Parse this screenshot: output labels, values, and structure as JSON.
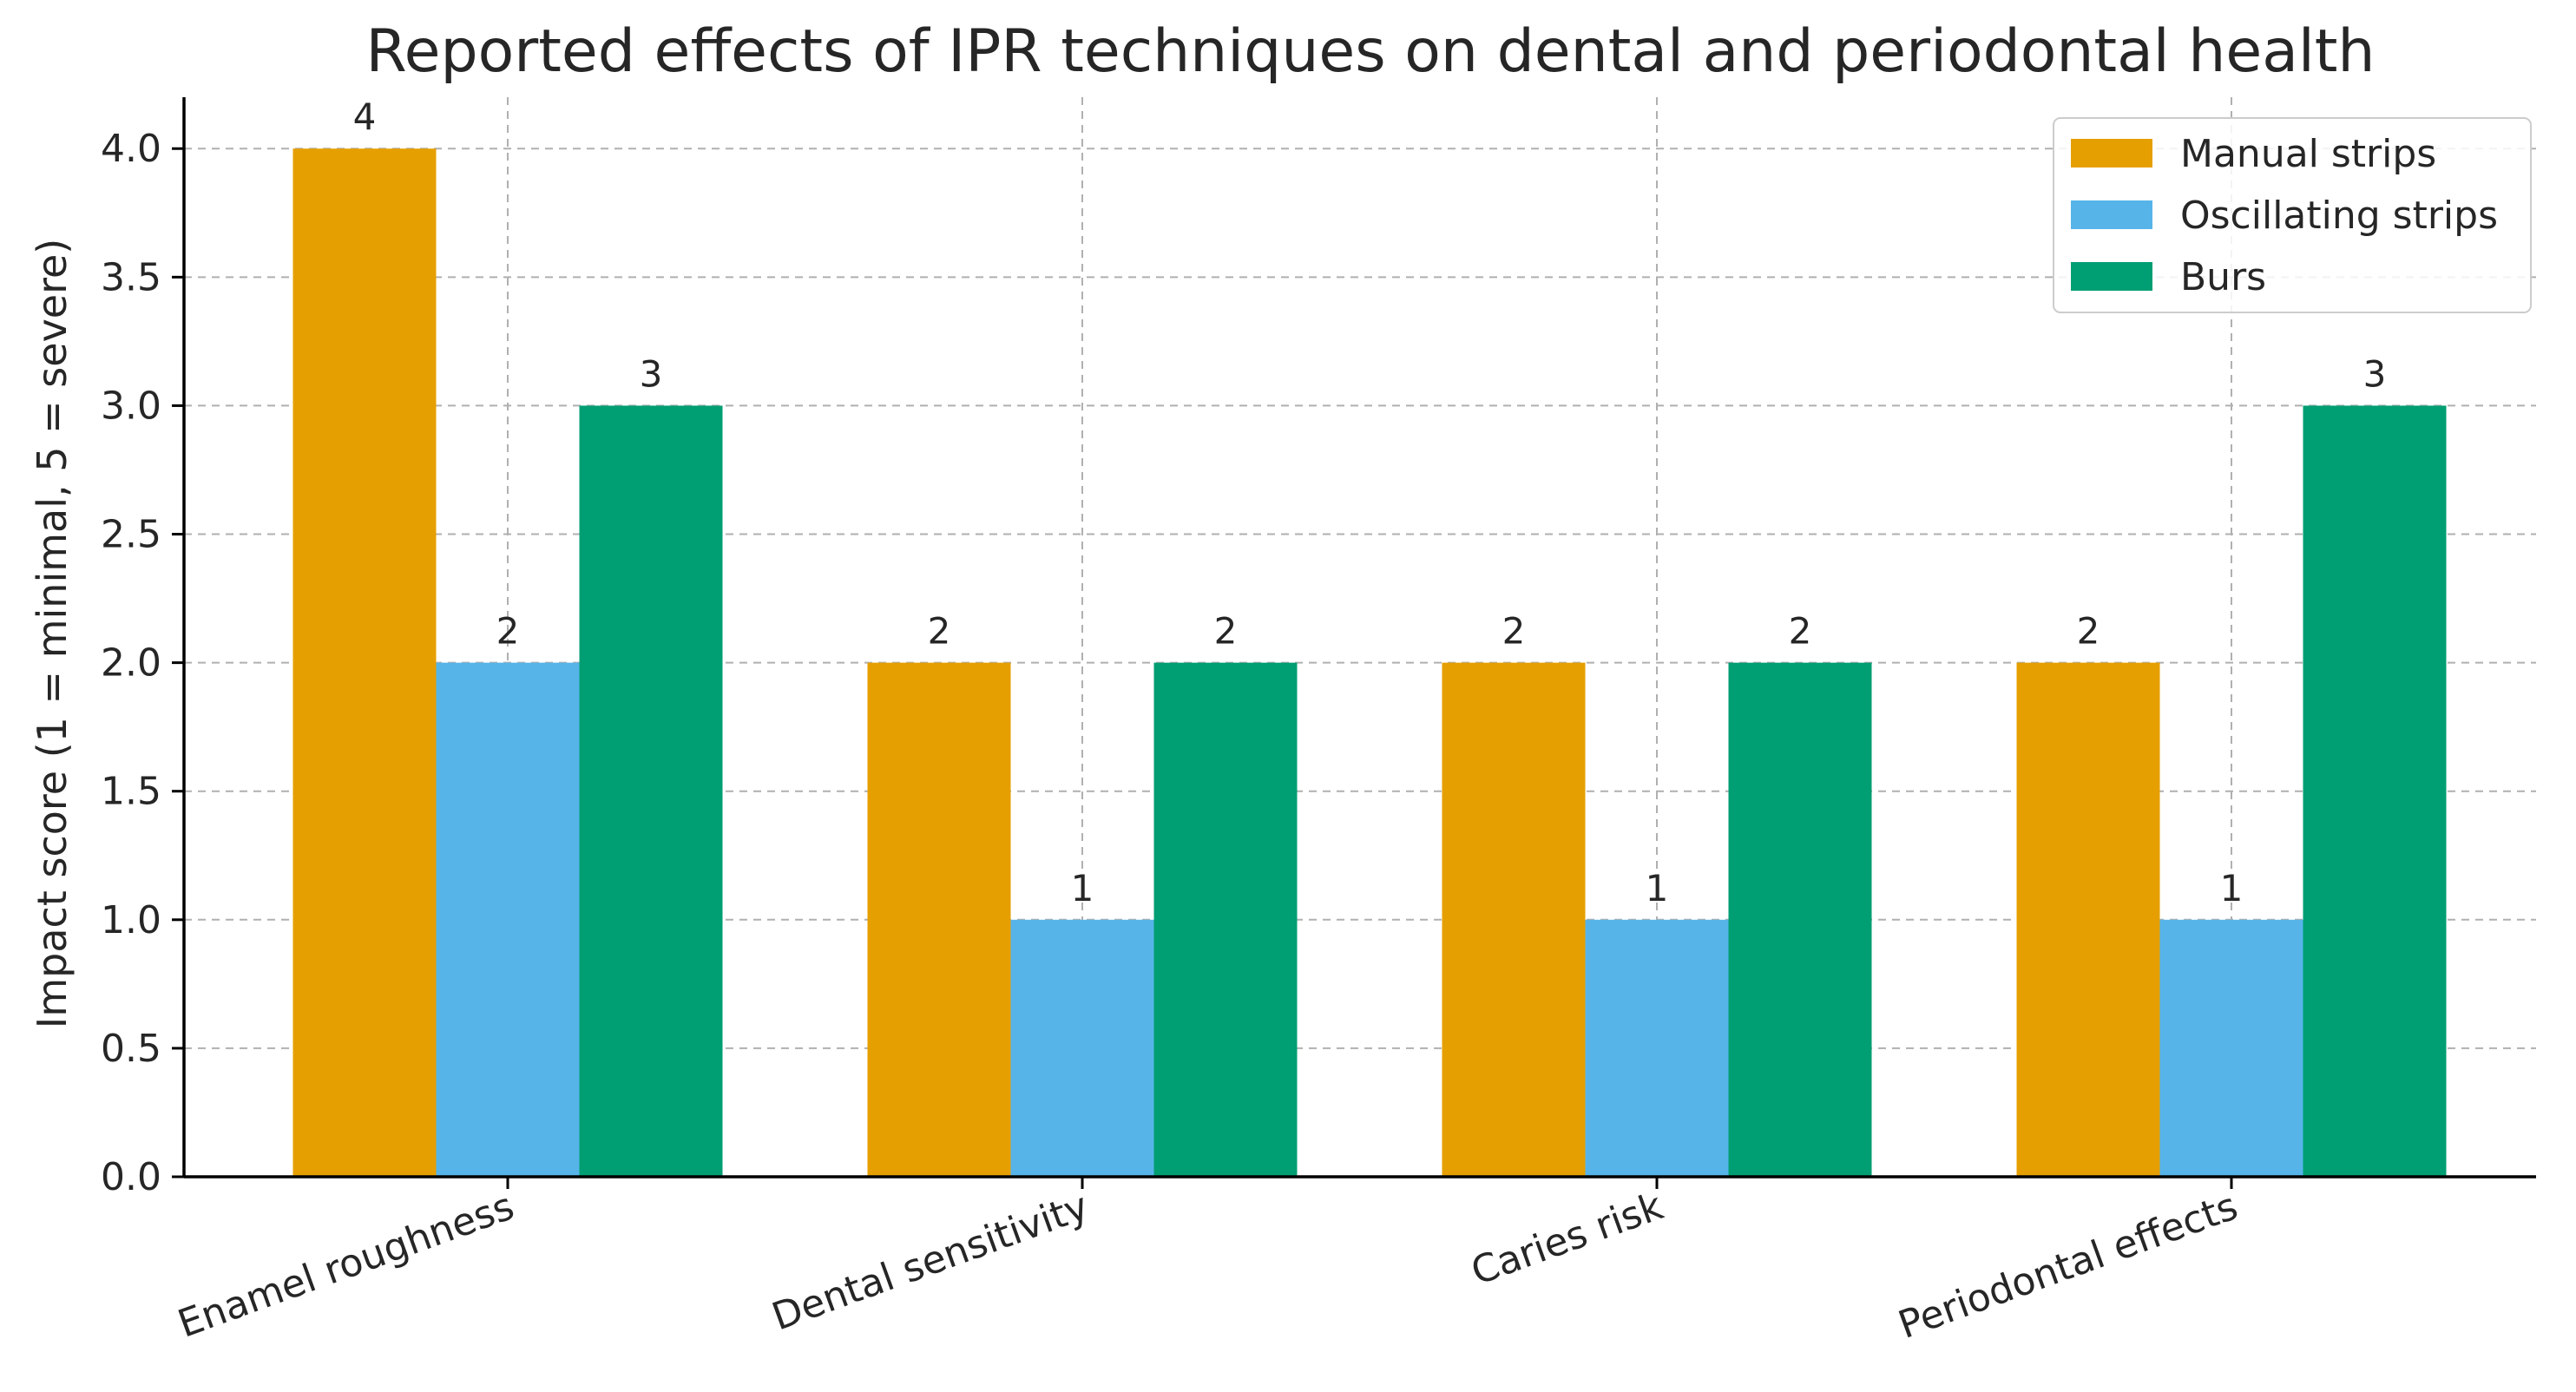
{
  "chart_data": {
    "type": "bar",
    "title": "Reported effects of IPR techniques on dental and periodontal health",
    "xlabel": "",
    "ylabel": "Impact score (1 = minimal, 5 = severe)",
    "ylim": [
      0,
      4.2
    ],
    "yticks": [
      0.0,
      0.5,
      1.0,
      1.5,
      2.0,
      2.5,
      3.0,
      3.5,
      4.0
    ],
    "ytick_labels": [
      "0.0",
      "0.5",
      "1.0",
      "1.5",
      "2.0",
      "2.5",
      "3.0",
      "3.5",
      "4.0"
    ],
    "categories": [
      "Enamel roughness",
      "Dental sensitivity",
      "Caries risk",
      "Periodontal effects"
    ],
    "series": [
      {
        "name": "Manual strips",
        "color": "#E69F00",
        "values": [
          4,
          2,
          2,
          2
        ]
      },
      {
        "name": "Oscillating strips",
        "color": "#56B4E9",
        "values": [
          2,
          1,
          1,
          1
        ]
      },
      {
        "name": "Burs",
        "color": "#009E73",
        "values": [
          3,
          2,
          2,
          3
        ]
      }
    ],
    "grid": true,
    "legend_position": "top-right"
  }
}
